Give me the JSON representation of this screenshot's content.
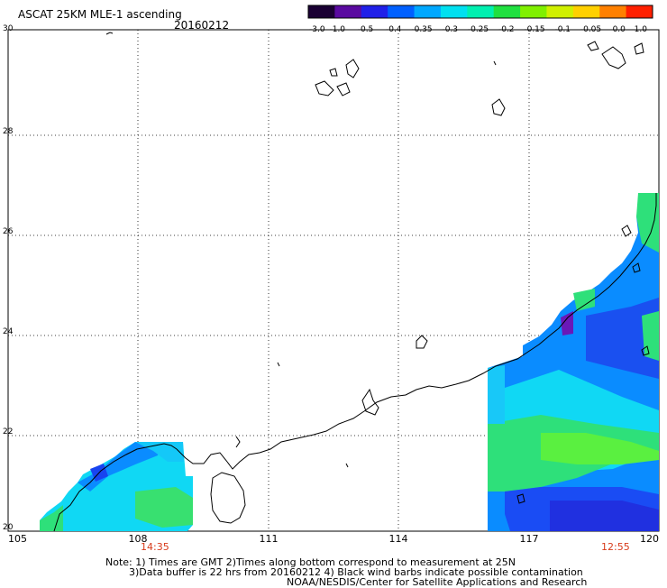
{
  "header": {
    "title": "ASCAT 25KM MLE-1 ascending",
    "date": "20160212"
  },
  "colorbar": {
    "labels": [
      "-3.0",
      "-1.0",
      "-0.5",
      "-0.4",
      "-0.35",
      "-0.3",
      "-0.25",
      "-0.2",
      "-0.15",
      "-0.1",
      "-0.05",
      "0.0",
      "1.0"
    ],
    "colors": [
      "#1a0033",
      "#5a0aa0",
      "#2020e8",
      "#0060ff",
      "#00a8ff",
      "#00e0f0",
      "#00f0b0",
      "#20e040",
      "#80f000",
      "#d0f000",
      "#ffd000",
      "#ff8000",
      "#ff2000"
    ]
  },
  "axes": {
    "lat_labels": [
      "30",
      "28",
      "26",
      "24",
      "22",
      "20"
    ],
    "lon_labels": [
      "105",
      "108",
      "111",
      "114",
      "117",
      "120"
    ]
  },
  "swath_times": {
    "left": "14:35",
    "right": "12:55"
  },
  "notes": {
    "line1": "Note: 1) Times are GMT 2)Times along bottom correspond to measurement at 25N",
    "line2": "3)Data buffer is 22 hrs from 20160212 4) Black wind barbs indicate possible contamination",
    "line3": "NOAA/NESDIS/Center for Satellite Applications and Research"
  }
}
